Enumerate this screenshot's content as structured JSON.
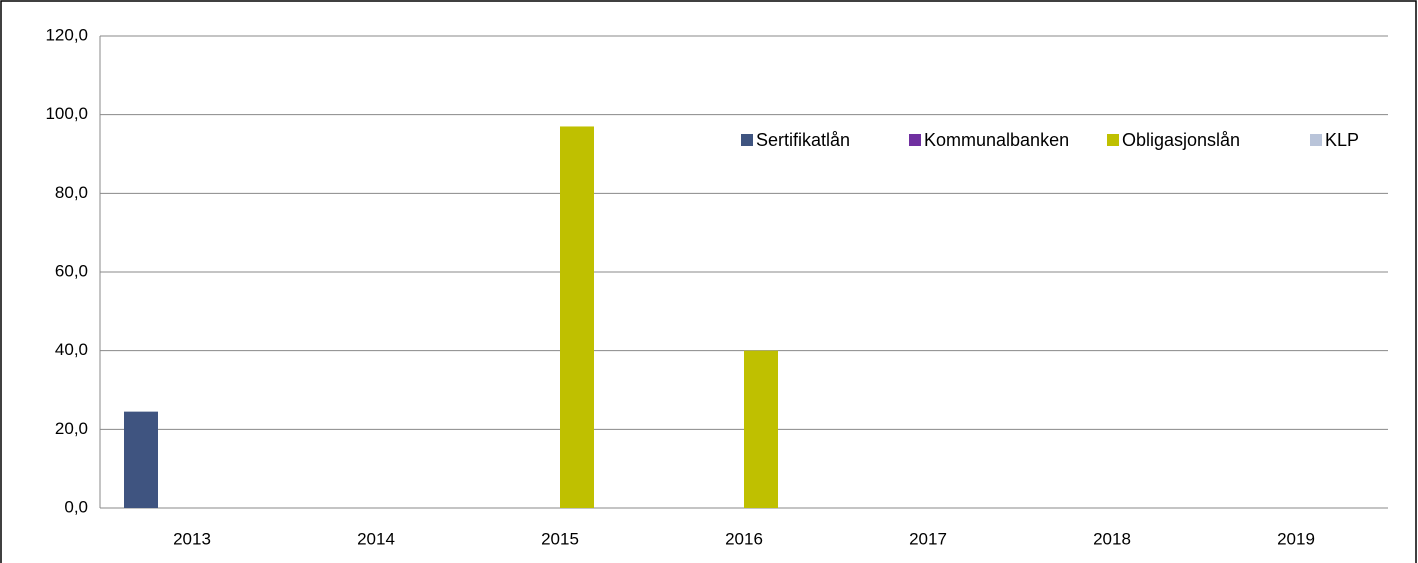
{
  "chart_data": {
    "type": "bar",
    "categories": [
      "2013",
      "2014",
      "2015",
      "2016",
      "2017",
      "2018",
      "2019"
    ],
    "series": [
      {
        "name": "Sertifikatlån",
        "color": "#3f5480",
        "values": [
          24.5,
          0,
          0,
          0,
          0,
          0,
          0
        ]
      },
      {
        "name": "Kommunalbanken",
        "color": "#7030a0",
        "values": [
          0,
          0,
          0,
          0,
          0,
          0,
          0
        ]
      },
      {
        "name": "Obligasjonslån",
        "color": "#bfc000",
        "values": [
          0,
          0,
          97,
          40,
          0,
          0,
          0
        ]
      },
      {
        "name": "KLP",
        "color": "#b9c4d9",
        "values": [
          0,
          0,
          0,
          0,
          0,
          0,
          0
        ]
      }
    ],
    "ylim": [
      0,
      120
    ],
    "yticks": [
      {
        "value": 0,
        "label": "0,0"
      },
      {
        "value": 20,
        "label": "20,0"
      },
      {
        "value": 40,
        "label": "40,0"
      },
      {
        "value": 60,
        "label": "60,0"
      },
      {
        "value": 80,
        "label": "80,0"
      },
      {
        "value": 100,
        "label": "100,0"
      },
      {
        "value": 120,
        "label": "120,0"
      }
    ],
    "grid": true,
    "legend": "top-right"
  }
}
